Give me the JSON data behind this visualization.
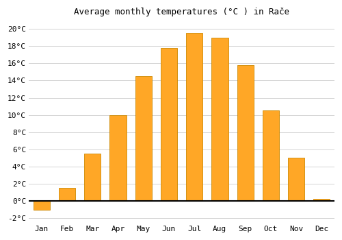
{
  "months": [
    "Jan",
    "Feb",
    "Mar",
    "Apr",
    "May",
    "Jun",
    "Jul",
    "Aug",
    "Sep",
    "Oct",
    "Nov",
    "Dec"
  ],
  "values": [
    -1.0,
    1.5,
    5.5,
    10.0,
    14.5,
    17.8,
    19.5,
    19.0,
    15.8,
    10.5,
    5.0,
    0.3
  ],
  "bar_color_positive": "#FFA726",
  "bar_color_negative": "#FFA726",
  "bar_edge_color": "#CC8800",
  "title": "Average monthly temperatures (°C ) in Rače",
  "title_fontsize": 9,
  "ytick_step": 2,
  "ylim": [
    -2.5,
    21
  ],
  "background_color": "#FFFFFF",
  "grid_color": "#CCCCCC",
  "font_family": "monospace",
  "tick_fontsize": 8
}
